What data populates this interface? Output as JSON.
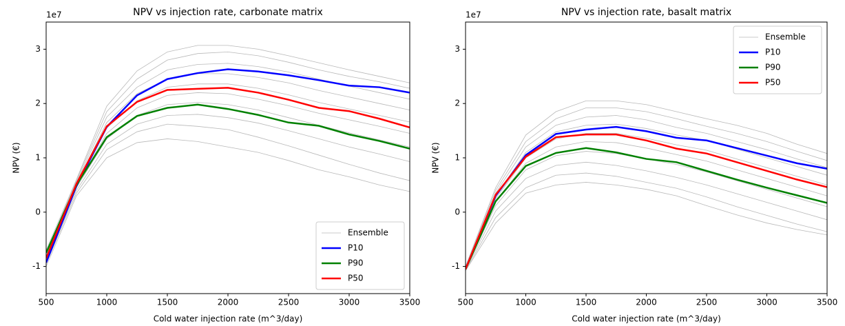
{
  "chart_data": [
    {
      "type": "line",
      "title": "NPV vs injection rate, carbonate matrix",
      "x_label": "Cold water injection rate (m^3/day)",
      "y_label": "NPV (€)",
      "y_offset_label": "1e7",
      "x": [
        500,
        750,
        1000,
        1250,
        1500,
        1750,
        2000,
        2250,
        2500,
        2750,
        3000,
        3250,
        3500
      ],
      "xlim": [
        500,
        3500
      ],
      "xticks": [
        500,
        1000,
        1500,
        2000,
        2500,
        3000,
        3500
      ],
      "ylim": [
        -1.5,
        3.5
      ],
      "yticks": [
        -1,
        0,
        1,
        2,
        3
      ],
      "legend": "lower right",
      "ensemble": {
        "name": "Ensemble",
        "color": "#b8b8b8",
        "lines": [
          [
            -0.7,
            0.6,
            1.95,
            2.6,
            2.95,
            3.07,
            3.07,
            3.0,
            2.88,
            2.75,
            2.62,
            2.5,
            2.38
          ],
          [
            -0.75,
            0.58,
            1.85,
            2.45,
            2.8,
            2.92,
            2.95,
            2.88,
            2.76,
            2.62,
            2.5,
            2.4,
            2.28
          ],
          [
            -0.8,
            0.55,
            1.75,
            2.3,
            2.62,
            2.72,
            2.74,
            2.68,
            2.58,
            2.45,
            2.32,
            2.2,
            2.08
          ],
          [
            -0.82,
            0.52,
            1.65,
            2.18,
            2.45,
            2.55,
            2.55,
            2.48,
            2.38,
            2.24,
            2.12,
            2.0,
            1.88
          ],
          [
            -0.85,
            0.5,
            1.55,
            2.05,
            2.3,
            2.36,
            2.36,
            2.28,
            2.16,
            2.02,
            1.9,
            1.78,
            1.66
          ],
          [
            -0.88,
            0.48,
            1.45,
            1.92,
            2.15,
            2.2,
            2.18,
            2.08,
            1.96,
            1.82,
            1.7,
            1.58,
            1.45
          ],
          [
            -0.9,
            0.45,
            1.35,
            1.78,
            1.98,
            2.02,
            1.98,
            1.88,
            1.74,
            1.6,
            1.46,
            1.33,
            1.2
          ],
          [
            -0.92,
            0.4,
            1.25,
            1.62,
            1.78,
            1.8,
            1.74,
            1.64,
            1.5,
            1.35,
            1.2,
            1.07,
            0.93
          ],
          [
            -0.95,
            0.35,
            1.15,
            1.48,
            1.62,
            1.58,
            1.52,
            1.38,
            1.22,
            1.05,
            0.88,
            0.72,
            0.58
          ],
          [
            -1.0,
            0.3,
            1.0,
            1.28,
            1.35,
            1.3,
            1.2,
            1.1,
            0.95,
            0.78,
            0.65,
            0.5,
            0.38
          ]
        ]
      },
      "series": [
        {
          "name": "P10",
          "color": "#0000ff",
          "values": [
            -0.93,
            0.48,
            1.57,
            2.15,
            2.45,
            2.56,
            2.63,
            2.59,
            2.52,
            2.43,
            2.33,
            2.3,
            2.2
          ]
        },
        {
          "name": "P90",
          "color": "#008000",
          "values": [
            -0.75,
            0.5,
            1.38,
            1.77,
            1.92,
            1.98,
            1.9,
            1.79,
            1.65,
            1.59,
            1.43,
            1.31,
            1.17
          ]
        },
        {
          "name": "P50",
          "color": "#ff0000",
          "values": [
            -0.85,
            0.52,
            1.58,
            2.03,
            2.25,
            2.27,
            2.29,
            2.2,
            2.07,
            1.92,
            1.86,
            1.72,
            1.56
          ]
        }
      ]
    },
    {
      "type": "line",
      "title": "NPV vs injection rate, basalt matrix",
      "x_label": "Cold water injection rate (m^3/day)",
      "y_label": "NPV (€)",
      "y_offset_label": "1e7",
      "x": [
        500,
        750,
        1000,
        1250,
        1500,
        1750,
        2000,
        2250,
        2500,
        2750,
        3000,
        3250,
        3500
      ],
      "xlim": [
        500,
        3500
      ],
      "xticks": [
        500,
        1000,
        1500,
        2000,
        2500,
        3000,
        3500
      ],
      "ylim": [
        -1.5,
        3.5
      ],
      "yticks": [
        -1,
        0,
        1,
        2,
        3
      ],
      "legend": "upper right",
      "ensemble": {
        "name": "Ensemble",
        "color": "#b8b8b8",
        "lines": [
          [
            -1.0,
            0.45,
            1.42,
            1.85,
            2.05,
            2.05,
            1.98,
            1.85,
            1.72,
            1.6,
            1.45,
            1.25,
            1.08
          ],
          [
            -1.0,
            0.4,
            1.3,
            1.72,
            1.92,
            1.92,
            1.85,
            1.72,
            1.58,
            1.45,
            1.3,
            1.12,
            0.95
          ],
          [
            -1.02,
            0.35,
            1.2,
            1.6,
            1.75,
            1.78,
            1.7,
            1.56,
            1.45,
            1.3,
            1.15,
            0.98,
            0.82
          ],
          [
            -1.03,
            0.3,
            1.1,
            1.48,
            1.6,
            1.62,
            1.54,
            1.42,
            1.32,
            1.16,
            1.0,
            0.84,
            0.68
          ],
          [
            -1.04,
            0.25,
            1.0,
            1.35,
            1.45,
            1.45,
            1.36,
            1.24,
            1.14,
            0.98,
            0.82,
            0.66,
            0.5
          ],
          [
            -1.05,
            0.2,
            0.9,
            1.2,
            1.3,
            1.28,
            1.18,
            1.06,
            0.94,
            0.78,
            0.62,
            0.46,
            0.3
          ],
          [
            -1.05,
            0.12,
            0.78,
            1.04,
            1.12,
            1.08,
            0.98,
            0.88,
            0.74,
            0.58,
            0.42,
            0.26,
            0.1
          ],
          [
            -1.06,
            0.02,
            0.62,
            0.86,
            0.92,
            0.86,
            0.76,
            0.64,
            0.5,
            0.34,
            0.18,
            0.02,
            -0.14
          ],
          [
            -1.07,
            -0.1,
            0.45,
            0.68,
            0.72,
            0.66,
            0.55,
            0.44,
            0.28,
            0.1,
            -0.06,
            -0.22,
            -0.36
          ],
          [
            -1.08,
            -0.2,
            0.35,
            0.5,
            0.55,
            0.5,
            0.42,
            0.3,
            0.12,
            -0.05,
            -0.2,
            -0.32,
            -0.42
          ]
        ]
      },
      "series": [
        {
          "name": "P10",
          "color": "#0000ff",
          "values": [
            -1.05,
            0.3,
            1.05,
            1.44,
            1.52,
            1.57,
            1.49,
            1.37,
            1.32,
            1.18,
            1.04,
            0.9,
            0.8
          ]
        },
        {
          "name": "P90",
          "color": "#008000",
          "values": [
            -1.05,
            0.2,
            0.85,
            1.09,
            1.18,
            1.1,
            0.98,
            0.92,
            0.76,
            0.6,
            0.45,
            0.31,
            0.17
          ]
        },
        {
          "name": "P50",
          "color": "#ff0000",
          "values": [
            -1.05,
            0.32,
            1.02,
            1.38,
            1.43,
            1.43,
            1.32,
            1.17,
            1.08,
            0.92,
            0.76,
            0.6,
            0.46
          ]
        }
      ]
    }
  ]
}
